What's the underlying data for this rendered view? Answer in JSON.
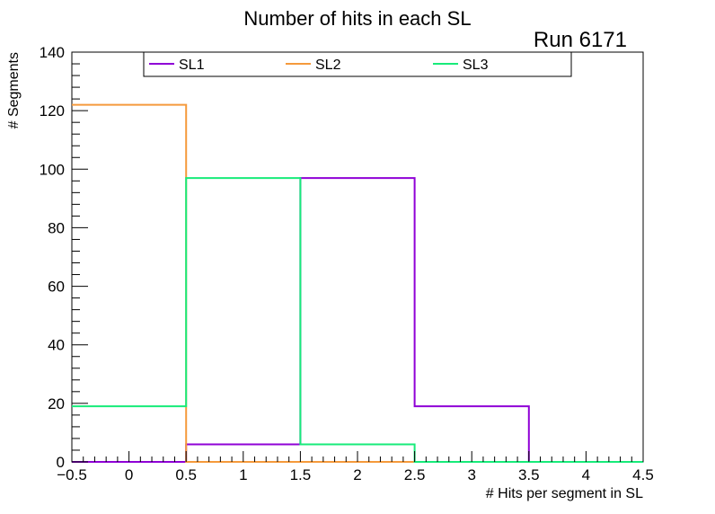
{
  "chart_data": {
    "type": "histogram",
    "title": "Number of hits in each SL",
    "annotation": "Run 6171",
    "xlabel": "# Hits per segment in SL",
    "ylabel": "# Segments",
    "xlim": [
      -0.5,
      4.5
    ],
    "ylim": [
      0,
      140
    ],
    "x_ticks": [
      "−0.5",
      "0",
      "0.5",
      "1",
      "1.5",
      "2",
      "2.5",
      "3",
      "3.5",
      "4",
      "4.5"
    ],
    "y_ticks": [
      "0",
      "20",
      "40",
      "60",
      "80",
      "100",
      "120",
      "140"
    ],
    "bin_edges": [
      -0.5,
      0.5,
      1.5,
      2.5,
      3.5,
      4.5
    ],
    "series": [
      {
        "name": "SL1",
        "color": "#8f00d6",
        "values": [
          0,
          6,
          97,
          19,
          0
        ]
      },
      {
        "name": "SL2",
        "color": "#f59a3c",
        "values": [
          122,
          0,
          0,
          0,
          0
        ]
      },
      {
        "name": "SL3",
        "color": "#17eb7a",
        "values": [
          19,
          97,
          6,
          0,
          0
        ]
      }
    ],
    "legend_position": "top"
  }
}
